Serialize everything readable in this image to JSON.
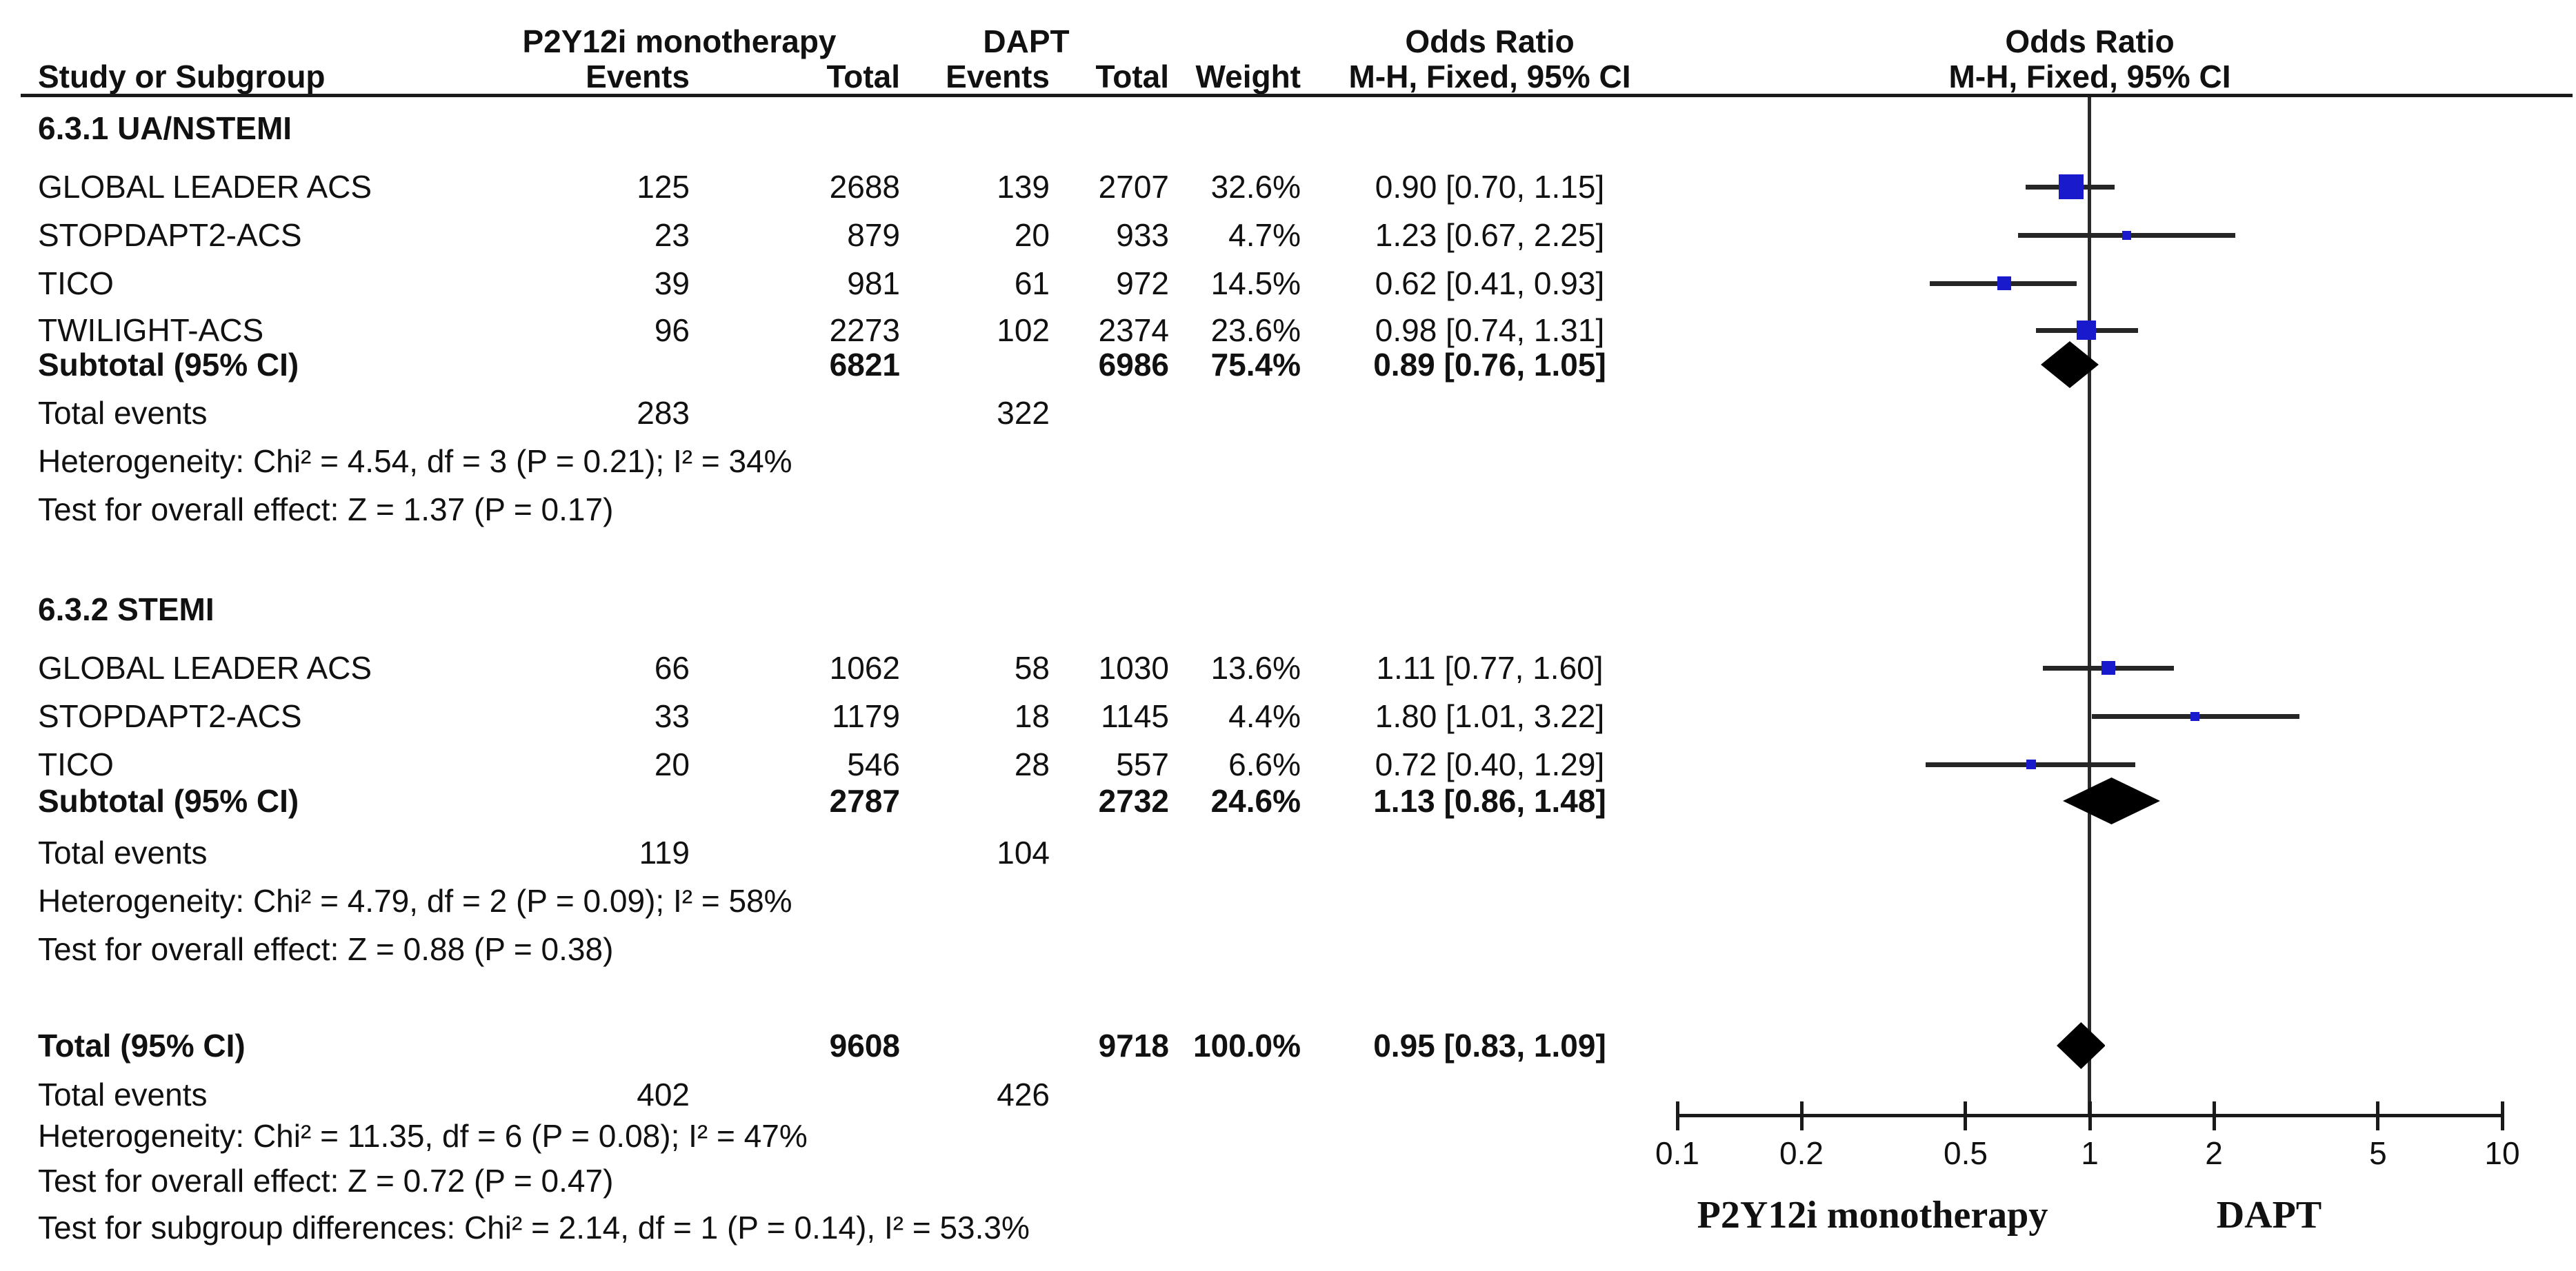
{
  "chart_data": {
    "type": "forest_plot",
    "effect_measure": "Odds Ratio",
    "scale": "log",
    "axis": {
      "ticks": [
        0.1,
        0.2,
        0.5,
        1,
        2,
        5,
        10
      ],
      "tick_labels": [
        "0.1",
        "0.2",
        "0.5",
        "1",
        "2",
        "5",
        "10"
      ],
      "left_favours_label": "P2Y12i monotherapy",
      "right_favours_label": "DAPT"
    },
    "headers": {
      "group1": "P2Y12i monotherapy",
      "group2": "DAPT",
      "study": "Study or Subgroup",
      "events1": "Events",
      "total1": "Total",
      "events2": "Events",
      "total2": "Total",
      "weight": "Weight",
      "or_left_title": "Odds Ratio",
      "or_left_sub": "M-H, Fixed, 95% CI",
      "or_right_title": "Odds Ratio",
      "or_right_sub": "M-H, Fixed, 95% CI"
    },
    "colors": {
      "square": "#1a1acd",
      "diamond": "#000000",
      "line": "#262626"
    },
    "subgroups": [
      {
        "title": "6.3.1 UA/NSTEMI",
        "studies": [
          {
            "name": "GLOBAL LEADER ACS",
            "events1": "125",
            "total1": "2688",
            "events2": "139",
            "total2": "2707",
            "weight": "32.6%",
            "weight_pct": 32.6,
            "or": 0.9,
            "ci_low": 0.7,
            "ci_high": 1.15,
            "or_text": "0.90 [0.70, 1.15]"
          },
          {
            "name": "STOPDAPT2-ACS",
            "events1": "23",
            "total1": "879",
            "events2": "20",
            "total2": "933",
            "weight": "4.7%",
            "weight_pct": 4.7,
            "or": 1.23,
            "ci_low": 0.67,
            "ci_high": 2.25,
            "or_text": "1.23 [0.67, 2.25]"
          },
          {
            "name": "TICO",
            "events1": "39",
            "total1": "981",
            "events2": "61",
            "total2": "972",
            "weight": "14.5%",
            "weight_pct": 14.5,
            "or": 0.62,
            "ci_low": 0.41,
            "ci_high": 0.93,
            "or_text": "0.62 [0.41, 0.93]"
          },
          {
            "name": "TWILIGHT-ACS",
            "events1": "96",
            "total1": "2273",
            "events2": "102",
            "total2": "2374",
            "weight": "23.6%",
            "weight_pct": 23.6,
            "or": 0.98,
            "ci_low": 0.74,
            "ci_high": 1.31,
            "or_text": "0.98 [0.74, 1.31]"
          }
        ],
        "subtotal": {
          "label": "Subtotal (95% CI)",
          "total1": "6821",
          "total2": "6986",
          "weight": "75.4%",
          "or": 0.89,
          "ci_low": 0.76,
          "ci_high": 1.05,
          "or_text": "0.89 [0.76, 1.05]"
        },
        "total_events": {
          "label": "Total events",
          "events1": "283",
          "events2": "322"
        },
        "heterogeneity": "Heterogeneity: Chi² = 4.54, df = 3 (P = 0.21); I² = 34%",
        "overall_effect": "Test for overall effect: Z = 1.37 (P = 0.17)"
      },
      {
        "title": "6.3.2 STEMI",
        "studies": [
          {
            "name": "GLOBAL LEADER ACS",
            "events1": "66",
            "total1": "1062",
            "events2": "58",
            "total2": "1030",
            "weight": "13.6%",
            "weight_pct": 13.6,
            "or": 1.11,
            "ci_low": 0.77,
            "ci_high": 1.6,
            "or_text": "1.11 [0.77, 1.60]"
          },
          {
            "name": "STOPDAPT2-ACS",
            "events1": "33",
            "total1": "1179",
            "events2": "18",
            "total2": "1145",
            "weight": "4.4%",
            "weight_pct": 4.4,
            "or": 1.8,
            "ci_low": 1.01,
            "ci_high": 3.22,
            "or_text": "1.80 [1.01, 3.22]"
          },
          {
            "name": "TICO",
            "events1": "20",
            "total1": "546",
            "events2": "28",
            "total2": "557",
            "weight": "6.6%",
            "weight_pct": 6.6,
            "or": 0.72,
            "ci_low": 0.4,
            "ci_high": 1.29,
            "or_text": "0.72 [0.40, 1.29]"
          }
        ],
        "subtotal": {
          "label": "Subtotal (95% CI)",
          "total1": "2787",
          "total2": "2732",
          "weight": "24.6%",
          "or": 1.13,
          "ci_low": 0.86,
          "ci_high": 1.48,
          "or_text": "1.13 [0.86, 1.48]"
        },
        "total_events": {
          "label": "Total events",
          "events1": "119",
          "events2": "104"
        },
        "heterogeneity": "Heterogeneity: Chi² = 4.79, df = 2 (P = 0.09); I² = 58%",
        "overall_effect": "Test for overall effect: Z = 0.88 (P = 0.38)"
      }
    ],
    "total": {
      "label": "Total (95% CI)",
      "total1": "9608",
      "total2": "9718",
      "weight": "100.0%",
      "or": 0.95,
      "ci_low": 0.83,
      "ci_high": 1.09,
      "or_text": "0.95 [0.83, 1.09]",
      "total_events": {
        "label": "Total events",
        "events1": "402",
        "events2": "426"
      },
      "heterogeneity": "Heterogeneity: Chi² = 11.35, df = 6 (P = 0.08); I² = 47%",
      "overall_effect": "Test for overall effect: Z = 0.72 (P = 0.47)",
      "subgroup_differences": "Test for subgroup differences: Chi² = 2.14, df = 1 (P = 0.14), I² = 53.3%"
    }
  }
}
